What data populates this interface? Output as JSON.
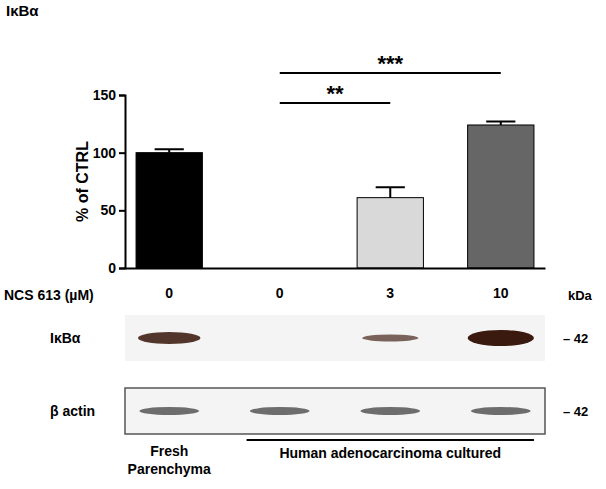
{
  "chart_data": {
    "type": "bar",
    "title": "IκBα",
    "y_label": "% of CTRL",
    "x_label": "NCS 613 (µM)",
    "categories": [
      "0",
      "0",
      "3",
      "10"
    ],
    "values": [
      100,
      0,
      61,
      124
    ],
    "errors": [
      3,
      0,
      9,
      3
    ],
    "colors": [
      "#000000",
      "#ffffff",
      "#d9d9d9",
      "#666666"
    ],
    "ylim": [
      0,
      150
    ],
    "yticks": [
      0,
      50,
      100,
      150
    ],
    "annotations": [
      {
        "from": 1,
        "to": 2,
        "text": "**"
      },
      {
        "from": 1,
        "to": 3,
        "text": "***"
      }
    ],
    "blot": {
      "rows": [
        "IκBα",
        "β actin"
      ],
      "unit": "kDa",
      "markers": [
        42,
        42
      ]
    },
    "groups": [
      [
        "Fresh",
        "Parenchyma"
      ],
      [
        "Human adenocarcinoma cultured"
      ]
    ]
  }
}
